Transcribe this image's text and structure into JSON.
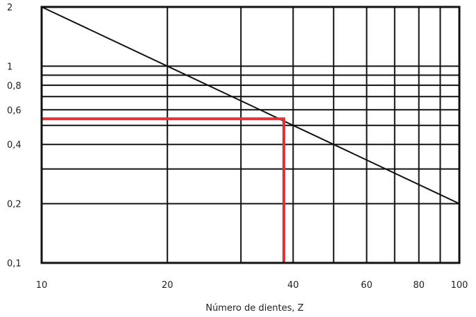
{
  "chart_data": {
    "type": "line",
    "title": "",
    "xlabel": "Número de dientes, Z",
    "ylabel": "",
    "x_scale": "log",
    "y_scale": "log",
    "xlim": [
      10,
      100
    ],
    "ylim": [
      0.1,
      2
    ],
    "grid": true,
    "x_ticks": [
      {
        "value": 10,
        "label": "10"
      },
      {
        "value": 20,
        "label": "20"
      },
      {
        "value": 40,
        "label": "40"
      },
      {
        "value": 60,
        "label": "60"
      },
      {
        "value": 80,
        "label": "80"
      },
      {
        "value": 100,
        "label": "100"
      }
    ],
    "y_ticks": [
      {
        "value": 0.1,
        "label": "0,1"
      },
      {
        "value": 0.2,
        "label": "0,2"
      },
      {
        "value": 0.4,
        "label": "0,4"
      },
      {
        "value": 0.6,
        "label": "0,6"
      },
      {
        "value": 0.8,
        "label": "0,8"
      },
      {
        "value": 1,
        "label": "1"
      },
      {
        "value": 2,
        "label": "2"
      }
    ],
    "x_gridlines": [
      20,
      30,
      40,
      50,
      60,
      70,
      80,
      90
    ],
    "y_gridlines": [
      0.2,
      0.3,
      0.4,
      0.5,
      0.6,
      0.7,
      0.8,
      0.9,
      1
    ],
    "series": [
      {
        "color": "#111111",
        "points": [
          [
            10,
            2
          ],
          [
            100,
            0.2
          ]
        ]
      }
    ],
    "annotations": [
      {
        "type": "reading-guide",
        "color": "#e0323a",
        "x": 38,
        "y": 0.54
      }
    ]
  }
}
